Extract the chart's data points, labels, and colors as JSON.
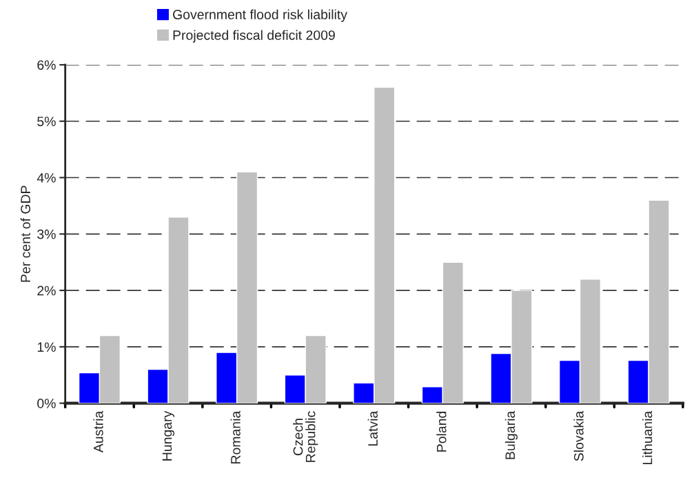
{
  "chart_data": {
    "type": "bar",
    "ylabel": "Per cent of GDP",
    "categories": [
      "Austria",
      "Hungary",
      "Romania",
      "Czech\nRepublic",
      "Latvia",
      "Poland",
      "Bulgaria",
      "Slovakia",
      "Lithuania"
    ],
    "series": [
      {
        "name": "Government flood risk liability",
        "color": "#0000ff",
        "values": [
          0.54,
          0.6,
          0.9,
          0.5,
          0.36,
          0.29,
          0.88,
          0.76,
          0.76
        ]
      },
      {
        "name": "Projected fiscal deficit 2009",
        "color": "#c0c0c0",
        "values": [
          1.2,
          3.3,
          4.1,
          1.2,
          5.6,
          2.5,
          2.0,
          2.2,
          3.6
        ]
      }
    ],
    "ylim": [
      0,
      6
    ],
    "yticks": [
      {
        "value": 0,
        "label": "0%"
      },
      {
        "value": 1,
        "label": "1%"
      },
      {
        "value": 2,
        "label": "2%"
      },
      {
        "value": 3,
        "label": "3%"
      },
      {
        "value": 4,
        "label": "4%"
      },
      {
        "value": 5,
        "label": "5%"
      },
      {
        "value": 6,
        "label": "6%"
      }
    ],
    "grid": "y",
    "legend": "top"
  }
}
